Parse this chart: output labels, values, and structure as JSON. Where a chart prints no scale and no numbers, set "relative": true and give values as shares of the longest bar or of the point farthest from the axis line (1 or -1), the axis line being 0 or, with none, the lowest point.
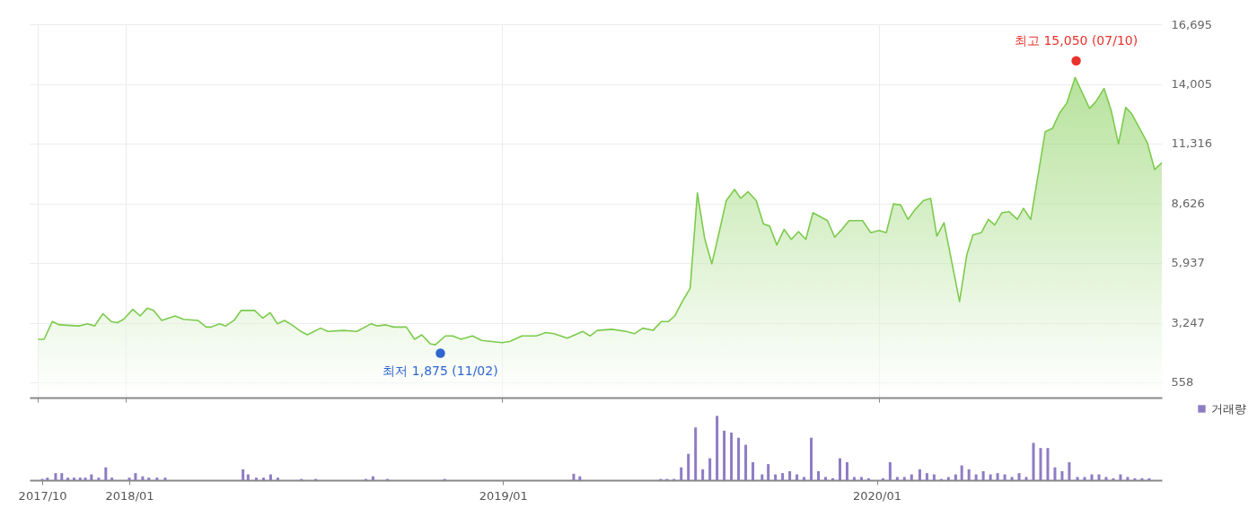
{
  "chart_data": [
    {
      "type": "area",
      "color": "#7ccb4c",
      "grid": true,
      "tick_labels": "y",
      "xlim": [
        "2017-09-30",
        "2020-10-01"
      ],
      "ylim": [
        -130,
        16695
      ],
      "yticks": [
        {
          "value": 558,
          "label": "558"
        },
        {
          "value": 3247,
          "label": "3,247"
        },
        {
          "value": 5937,
          "label": "5,937"
        },
        {
          "value": 8626,
          "label": "8,626"
        },
        {
          "value": 11316,
          "label": "11,316"
        },
        {
          "value": 14005,
          "label": "14,005"
        },
        {
          "value": 16695,
          "label": "16,695"
        }
      ],
      "xticks": [
        {
          "value": "2017-10-08",
          "label": null
        },
        {
          "value": "2018-01-01",
          "label": null
        },
        {
          "value": "2019-01-01",
          "label": null
        },
        {
          "value": "2020-01-01",
          "label": null
        }
      ],
      "series": [
        {
          "type": "scatter",
          "x": [
            "2020-07-10",
            "2018-11-02"
          ],
          "values": [
            15050,
            1875
          ],
          "colors": [
            "#e8322b",
            "#2f66d0"
          ]
        }
      ],
      "x": [
        "2017-10-08",
        "2017-10-14",
        "2017-10-22",
        "2017-10-29",
        "2017-11-17",
        "2017-11-25",
        "2017-12-02",
        "2017-12-10",
        "2017-12-18",
        "2017-12-24",
        "2017-12-30",
        "2018-01-08",
        "2018-01-15",
        "2018-01-22",
        "2018-01-28",
        "2018-02-05",
        "2018-02-18",
        "2018-02-26",
        "2018-03-12",
        "2018-03-20",
        "2018-03-25",
        "2018-04-02",
        "2018-04-08",
        "2018-04-16",
        "2018-04-23",
        "2018-05-06",
        "2018-05-14",
        "2018-05-21",
        "2018-05-28",
        "2018-06-04",
        "2018-06-11",
        "2018-06-20",
        "2018-06-26",
        "2018-07-09",
        "2018-07-16",
        "2018-07-31",
        "2018-08-13",
        "2018-08-27",
        "2018-09-02",
        "2018-09-10",
        "2018-09-18",
        "2018-09-30",
        "2018-10-08",
        "2018-10-15",
        "2018-10-23",
        "2018-10-28",
        "2018-11-07",
        "2018-11-14",
        "2018-11-22",
        "2018-12-03",
        "2018-12-12",
        "2018-12-22",
        "2019-01-01",
        "2019-01-08",
        "2019-01-20",
        "2019-02-03",
        "2019-02-12",
        "2019-02-20",
        "2019-03-05",
        "2019-03-20",
        "2019-03-27",
        "2019-04-03",
        "2019-04-17",
        "2019-05-01",
        "2019-05-09",
        "2019-05-17",
        "2019-05-27",
        "2019-06-04",
        "2019-06-11",
        "2019-06-17",
        "2019-06-25",
        "2019-07-02",
        "2019-07-09",
        "2019-07-16",
        "2019-07-23",
        "2019-07-30",
        "2019-08-06",
        "2019-08-14",
        "2019-08-20",
        "2019-08-27",
        "2019-09-04",
        "2019-09-11",
        "2019-09-17",
        "2019-09-24",
        "2019-10-01",
        "2019-10-08",
        "2019-10-15",
        "2019-10-22",
        "2019-10-29",
        "2019-11-06",
        "2019-11-12",
        "2019-11-19",
        "2019-11-26",
        "2019-12-03",
        "2019-12-16",
        "2019-12-24",
        "2020-01-01",
        "2020-01-08",
        "2020-01-15",
        "2020-01-22",
        "2020-01-29",
        "2020-02-05",
        "2020-02-13",
        "2020-02-20",
        "2020-02-26",
        "2020-03-04",
        "2020-03-19",
        "2020-03-26",
        "2020-04-01",
        "2020-04-09",
        "2020-04-16",
        "2020-04-22",
        "2020-04-29",
        "2020-05-06",
        "2020-05-14",
        "2020-05-20",
        "2020-05-27",
        "2020-06-10",
        "2020-06-17",
        "2020-06-24",
        "2020-07-01",
        "2020-07-09",
        "2020-07-23",
        "2020-07-29",
        "2020-08-06",
        "2020-08-13",
        "2020-08-20",
        "2020-08-27",
        "2020-09-02",
        "2020-09-17",
        "2020-09-24",
        "2020-10-01"
      ],
      "values": [
        2500,
        2500,
        3300,
        3150,
        3100,
        3200,
        3100,
        3650,
        3300,
        3250,
        3400,
        3850,
        3550,
        3900,
        3800,
        3350,
        3550,
        3400,
        3350,
        3050,
        3050,
        3200,
        3100,
        3350,
        3800,
        3800,
        3450,
        3700,
        3200,
        3350,
        3150,
        2850,
        2700,
        3000,
        2850,
        2900,
        2850,
        3200,
        3100,
        3150,
        3050,
        3050,
        2500,
        2700,
        2300,
        2250,
        2650,
        2650,
        2500,
        2650,
        2450,
        2400,
        2350,
        2400,
        2650,
        2650,
        2800,
        2750,
        2550,
        2850,
        2650,
        2900,
        2950,
        2850,
        2750,
        3000,
        2900,
        3300,
        3300,
        3550,
        4250,
        4800,
        9100,
        7050,
        5900,
        7300,
        8750,
        9250,
        8850,
        9150,
        8750,
        7700,
        7600,
        6750,
        7450,
        7000,
        7350,
        7000,
        8200,
        8000,
        7850,
        7100,
        7450,
        7850,
        7850,
        7300,
        7400,
        7300,
        8600,
        8550,
        7900,
        8350,
        8750,
        8850,
        7150,
        7750,
        4200,
        6300,
        7200,
        7300,
        7900,
        7650,
        8200,
        8250,
        7900,
        8400,
        7900,
        11850,
        12000,
        12700,
        13150,
        14300,
        12900,
        13200,
        13800,
        12800,
        11300,
        12950,
        12650,
        11350,
        10150,
        10450
      ],
      "annotations": [
        {
          "text": "최고 15,050 (07/10)",
          "x": "2020-07-10",
          "y": 15050
        },
        {
          "text": "최저 1,875 (11/02)",
          "x": "2018-11-02",
          "y": 1875
        }
      ]
    },
    {
      "type": "bar",
      "relative": true,
      "tick_labels": "x",
      "legend": "top right",
      "xlim": [
        "2017-09-30",
        "2020-10-01"
      ],
      "xticks": [
        {
          "value": "2017-10-08",
          "label": "2017/10"
        },
        {
          "value": "2018-01-01",
          "label": "2018/01"
        },
        {
          "value": "2019-01-01",
          "label": "2019/01"
        },
        {
          "value": "2020-01-01",
          "label": "2020/01"
        }
      ],
      "x": [
        "2017-10-08",
        "2017-10-13",
        "2017-10-21",
        "2017-10-27",
        "2017-11-02",
        "2017-11-08",
        "2017-11-14",
        "2017-11-19",
        "2017-11-25",
        "2017-12-02",
        "2017-12-09",
        "2017-12-15",
        "2018-01-01",
        "2018-01-07",
        "2018-01-14",
        "2018-01-20",
        "2018-01-28",
        "2018-02-05",
        "2018-04-22",
        "2018-04-27",
        "2018-05-05",
        "2018-05-12",
        "2018-05-19",
        "2018-05-26",
        "2018-06-18",
        "2018-07-02",
        "2018-08-20",
        "2018-08-27",
        "2018-09-10",
        "2018-11-05",
        "2019-03-11",
        "2019-03-17",
        "2019-06-04",
        "2019-06-10",
        "2019-06-17",
        "2019-06-24",
        "2019-07-01",
        "2019-07-08",
        "2019-07-15",
        "2019-07-22",
        "2019-07-29",
        "2019-08-05",
        "2019-08-12",
        "2019-08-19",
        "2019-08-26",
        "2019-09-02",
        "2019-09-11",
        "2019-09-17",
        "2019-09-24",
        "2019-10-01",
        "2019-10-08",
        "2019-10-15",
        "2019-10-22",
        "2019-10-29",
        "2019-11-05",
        "2019-11-12",
        "2019-11-19",
        "2019-11-26",
        "2019-12-03",
        "2019-12-10",
        "2019-12-17",
        "2019-12-24",
        "2020-01-07",
        "2020-01-14",
        "2020-01-21",
        "2020-01-28",
        "2020-02-04",
        "2020-02-12",
        "2020-02-19",
        "2020-02-26",
        "2020-03-04",
        "2020-03-11",
        "2020-03-18",
        "2020-03-24",
        "2020-03-31",
        "2020-04-07",
        "2020-04-14",
        "2020-04-21",
        "2020-04-28",
        "2020-05-05",
        "2020-05-12",
        "2020-05-19",
        "2020-05-26",
        "2020-06-02",
        "2020-06-09",
        "2020-06-16",
        "2020-06-23",
        "2020-06-30",
        "2020-07-07",
        "2020-07-15",
        "2020-07-22",
        "2020-07-29",
        "2020-08-05",
        "2020-08-12",
        "2020-08-19",
        "2020-08-26",
        "2020-09-02",
        "2020-09-09",
        "2020-09-16",
        "2020-09-23"
      ],
      "series": [
        {
          "name": "거래량",
          "color": "#8e7cc3",
          "values": [
            0.02,
            0.04,
            0.11,
            0.11,
            0.04,
            0.04,
            0.04,
            0.04,
            0.09,
            0.04,
            0.2,
            0.04,
            0.04,
            0.11,
            0.06,
            0.04,
            0.04,
            0.04,
            0.17,
            0.09,
            0.04,
            0.04,
            0.09,
            0.04,
            0.02,
            0.02,
            0.02,
            0.06,
            0.02,
            0.02,
            0.1,
            0.06,
            0.02,
            0.02,
            0.02,
            0.2,
            0.41,
            0.82,
            0.17,
            0.34,
            1,
            0.77,
            0.74,
            0.66,
            0.55,
            0.28,
            0.09,
            0.25,
            0.09,
            0.11,
            0.14,
            0.09,
            0.05,
            0.66,
            0.14,
            0.05,
            0.03,
            0.34,
            0.28,
            0.05,
            0.05,
            0.03,
            0.03,
            0.28,
            0.05,
            0.05,
            0.09,
            0.17,
            0.11,
            0.09,
            0.02,
            0.05,
            0.09,
            0.23,
            0.17,
            0.09,
            0.14,
            0.09,
            0.11,
            0.09,
            0.05,
            0.11,
            0.05,
            0.58,
            0.5,
            0.5,
            0.2,
            0.14,
            0.28,
            0.05,
            0.05,
            0.09,
            0.09,
            0.05,
            0.03,
            0.09,
            0.05,
            0.03,
            0.03,
            0.03
          ]
        }
      ]
    }
  ]
}
